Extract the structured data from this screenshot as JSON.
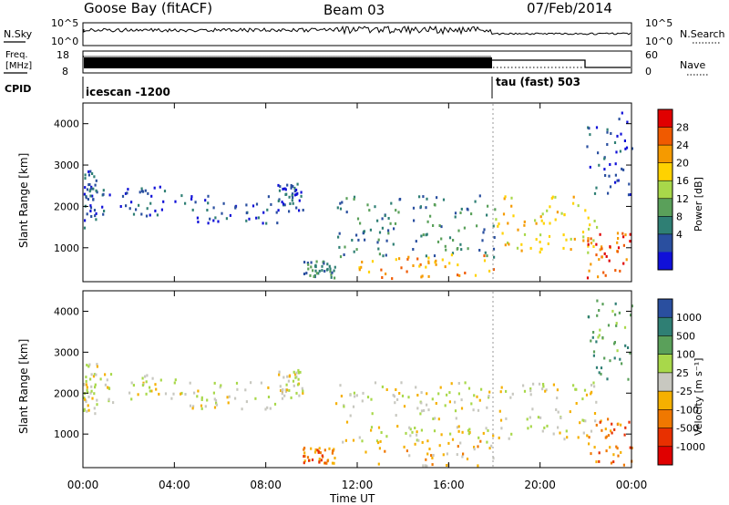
{
  "header": {
    "station": "Goose Bay (fitACF)",
    "beam": "Beam 03",
    "date": "07/Feb/2014"
  },
  "top_panels": {
    "nsky_label": "N.Sky",
    "nsky_ticks": [
      "10^5",
      "10^0"
    ],
    "nsearch_label": "N.Search",
    "nsearch_ticks": [
      "10^5",
      "10^0"
    ],
    "freq_label": "Freq.",
    "freq_unit": "[MHz]",
    "freq_ticks": [
      "18",
      "8"
    ],
    "nave_label": "Nave",
    "nave_ticks": [
      "60",
      "0"
    ],
    "cpid_label": "CPID",
    "cpid_segments": [
      {
        "label": "icescan -1200",
        "start": 0,
        "end": 18
      },
      {
        "label": "tau (fast) 503",
        "start": 18,
        "end": 24
      }
    ]
  },
  "chart_data": [
    {
      "type": "heatmap",
      "name": "power",
      "ylabel": "Slant Range [km]",
      "xlabel": "Time UT",
      "xlim": [
        0,
        24
      ],
      "ylim": [
        180,
        4500
      ],
      "x_ticks": [
        "00:00",
        "04:00",
        "08:00",
        "12:00",
        "16:00",
        "20:00",
        "00:00"
      ],
      "y_ticks": [
        1000,
        2000,
        3000,
        4000
      ],
      "colorbar": {
        "label": "Power [dB]",
        "ticks": [
          "28",
          "24",
          "20",
          "16",
          "12",
          "8",
          "4"
        ],
        "colors": [
          "#e00000",
          "#f05a00",
          "#f59a00",
          "#ffd200",
          "#a8d84a",
          "#5aa05a",
          "#2f7f74",
          "#2a4f9f",
          "#1010d8"
        ]
      },
      "regions": [
        {
          "t0": 0.0,
          "t1": 0.6,
          "r0": 1500,
          "r1": 2900,
          "level": 7
        },
        {
          "t0": 0.6,
          "t1": 4.5,
          "r0": 1800,
          "r1": 2500,
          "level": 7
        },
        {
          "t0": 4.5,
          "t1": 8.5,
          "r0": 1600,
          "r1": 2300,
          "level": 7
        },
        {
          "t0": 8.5,
          "t1": 9.6,
          "r0": 1900,
          "r1": 2600,
          "level": 7
        },
        {
          "t0": 9.6,
          "t1": 11.0,
          "r0": 300,
          "r1": 700,
          "level": 6
        },
        {
          "t0": 11.0,
          "t1": 18.0,
          "r0": 800,
          "r1": 2300,
          "level": 6
        },
        {
          "t0": 12.0,
          "t1": 18.0,
          "r0": 250,
          "r1": 900,
          "level": 2
        },
        {
          "t0": 18.0,
          "t1": 22.5,
          "r0": 900,
          "r1": 2300,
          "level": 3
        },
        {
          "t0": 22.0,
          "t1": 24.0,
          "r0": 250,
          "r1": 1400,
          "level": 1
        },
        {
          "t0": 22.0,
          "t1": 24.0,
          "r0": 2300,
          "r1": 4300,
          "level": 7
        }
      ]
    },
    {
      "type": "heatmap",
      "name": "velocity",
      "ylabel": "Slant Range [km]",
      "xlabel": "Time UT",
      "xlim": [
        0,
        24
      ],
      "ylim": [
        180,
        4500
      ],
      "x_ticks": [
        "00:00",
        "04:00",
        "08:00",
        "12:00",
        "16:00",
        "20:00",
        "00:00"
      ],
      "y_ticks": [
        1000,
        2000,
        3000,
        4000
      ],
      "colorbar": {
        "label": "Velocity [m s⁻¹]",
        "ticks": [
          "1000",
          "500",
          "100",
          "25",
          "-25",
          "-100",
          "-500",
          "-1000"
        ],
        "colors": [
          "#2a4f9f",
          "#2f7f74",
          "#5aa05a",
          "#a8d84a",
          "#c8c8c0",
          "#f5b000",
          "#f07800",
          "#e83000",
          "#e00000"
        ]
      },
      "regions": [
        {
          "t0": 0.0,
          "t1": 0.6,
          "r0": 1500,
          "r1": 2900,
          "level": 4
        },
        {
          "t0": 0.6,
          "t1": 4.5,
          "r0": 1800,
          "r1": 2500,
          "level": 4
        },
        {
          "t0": 4.5,
          "t1": 8.5,
          "r0": 1600,
          "r1": 2300,
          "level": 4
        },
        {
          "t0": 8.5,
          "t1": 9.6,
          "r0": 1900,
          "r1": 2600,
          "level": 4
        },
        {
          "t0": 9.6,
          "t1": 11.0,
          "r0": 300,
          "r1": 700,
          "level": 6
        },
        {
          "t0": 11.0,
          "t1": 18.0,
          "r0": 800,
          "r1": 2300,
          "level": 4
        },
        {
          "t0": 12.0,
          "t1": 18.0,
          "r0": 250,
          "r1": 900,
          "level": 5
        },
        {
          "t0": 18.0,
          "t1": 22.5,
          "r0": 900,
          "r1": 2300,
          "level": 4
        },
        {
          "t0": 22.0,
          "t1": 24.0,
          "r0": 250,
          "r1": 1400,
          "level": 6
        },
        {
          "t0": 22.0,
          "t1": 24.0,
          "r0": 2300,
          "r1": 4300,
          "level": 2
        }
      ]
    }
  ]
}
